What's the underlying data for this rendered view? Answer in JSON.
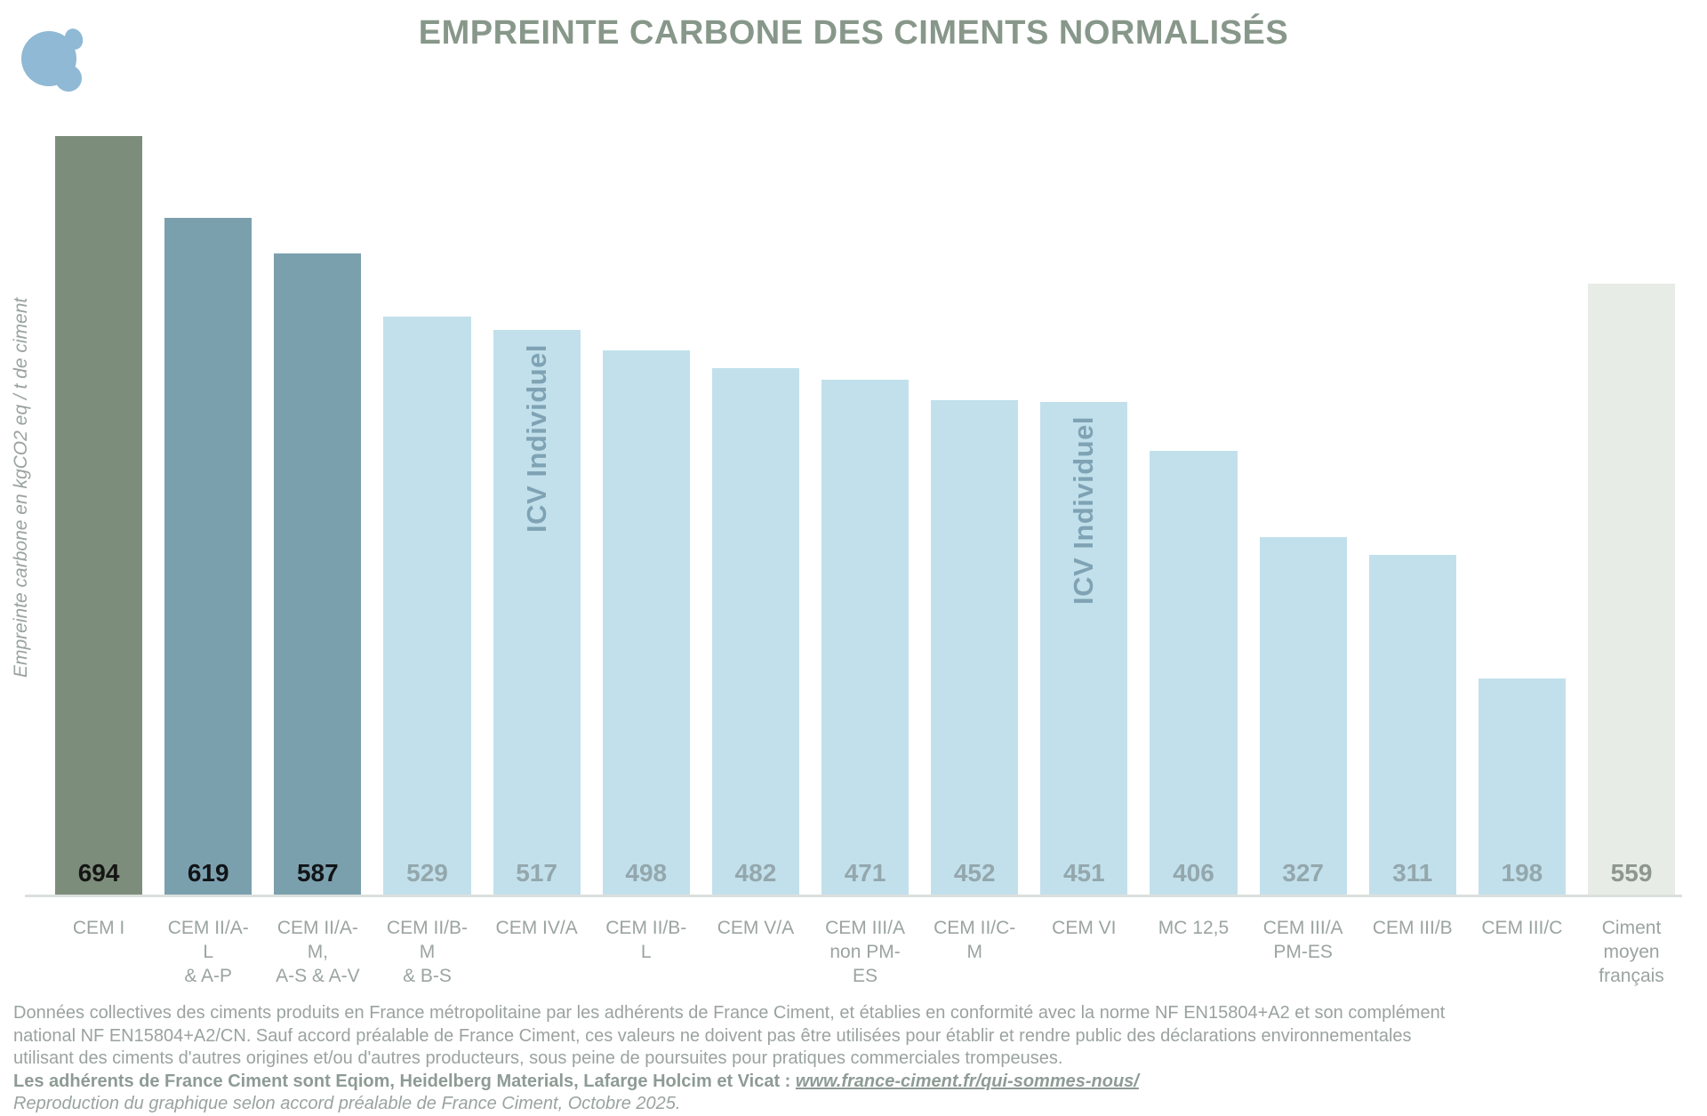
{
  "logo": {
    "color": "#8fb9d5"
  },
  "chart_data": {
    "type": "bar",
    "title": "EMPREINTE CARBONE DES CIMENTS NORMALISÉS",
    "xlabel": "",
    "ylabel": "Empreinte carbone en kgCO2 eq / t de ciment",
    "ylim": [
      0,
      694
    ],
    "grid": false,
    "legend_position": "none",
    "categories": [
      "CEM I",
      "CEM II/A-L\n& A-P",
      "CEM II/A-M,\nA-S & A-V",
      "CEM II/B-M\n& B-S",
      "CEM IV/A",
      "CEM II/B-L",
      "CEM V/A",
      "CEM III/A\nnon PM-ES",
      "CEM II/C-M",
      "CEM VI",
      "MC 12,5",
      "CEM III/A\nPM-ES",
      "CEM III/B",
      "CEM III/C",
      "Ciment\nmoyen\nfrançais"
    ],
    "values": [
      694,
      619,
      587,
      529,
      517,
      498,
      482,
      471,
      452,
      451,
      406,
      327,
      311,
      198,
      559
    ],
    "bar_colors": [
      "#7d8d7b",
      "#7ba0ad",
      "#7ba0ad",
      "#c2e0eb",
      "#c2e0eb",
      "#c2e0eb",
      "#c2e0eb",
      "#c2e0eb",
      "#c2e0eb",
      "#c2e0eb",
      "#c2e0eb",
      "#c2e0eb",
      "#c2e0eb",
      "#c2e0eb",
      "#e7ece6"
    ],
    "value_label_colors": [
      "#151515",
      "#111418",
      "#111418",
      "#93a7ad",
      "#93a7ad",
      "#93a7ad",
      "#93a7ad",
      "#93a7ad",
      "#93a7ad",
      "#93a7ad",
      "#93a7ad",
      "#93a7ad",
      "#93a7ad",
      "#93a7ad",
      "#8d978f"
    ],
    "annotation_color": "#7fa3b4",
    "bar_annotations": [
      {
        "index": 4,
        "text": "ICV Individuel"
      },
      {
        "index": 9,
        "text": "ICV Individuel"
      }
    ]
  },
  "footer": {
    "paragraph_lines": [
      "Données collectives des ciments produits en France métropolitaine par les adhérents de France Ciment, et établies en conformité avec la norme NF EN15804+A2 et son complément",
      "national NF EN15804+A2/CN. Sauf accord préalable de France Ciment, ces valeurs ne doivent pas être utilisées pour établir et rendre public des déclarations environnementales",
      "utilisant des ciments d'autres origines et/ou d'autres producteurs, sous peine de poursuites pour pratiques commerciales trompeuses."
    ],
    "members_line_prefix": "Les adhérents de France Ciment sont Eqiom, Heidelberg Materials, Lafarge Holcim et Vicat : ",
    "members_link": "www.france-ciment.fr/qui-sommes-nous/",
    "reproduction_line": "Reproduction du graphique selon accord préalable de France Ciment, Octobre 2025."
  }
}
